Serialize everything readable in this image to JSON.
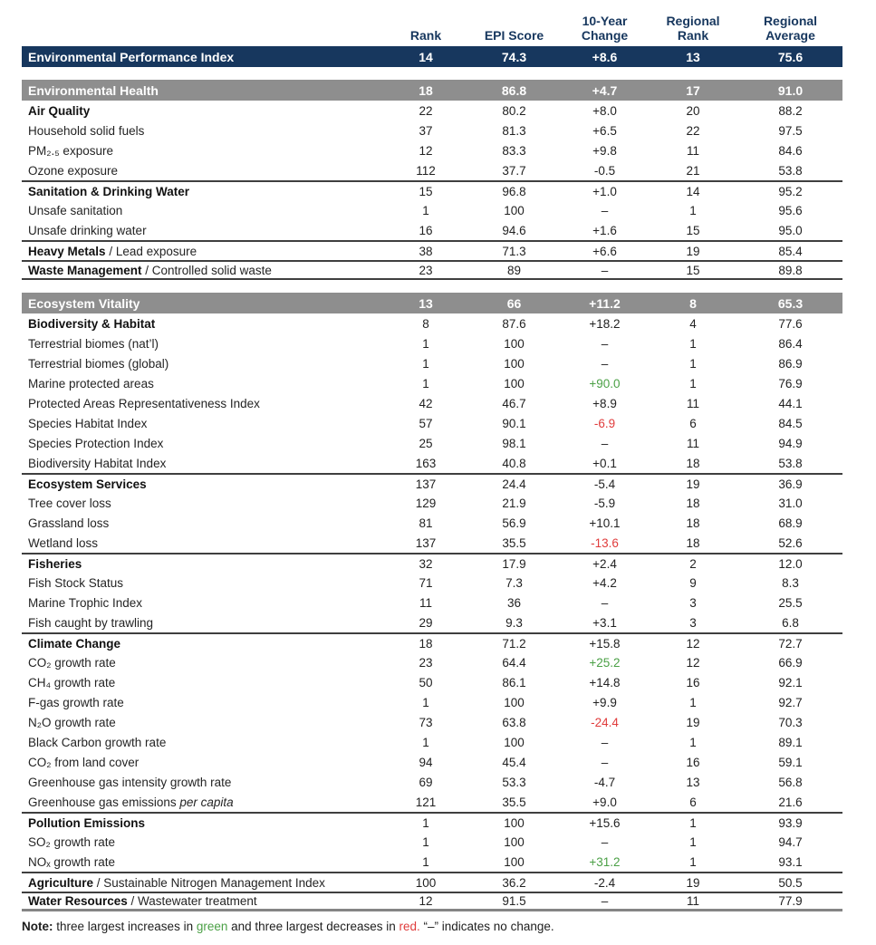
{
  "columns": [
    "Rank",
    "EPI Score",
    "10-Year\nChange",
    "Regional\nRank",
    "Regional\nAverage"
  ],
  "summary": {
    "label": "Environmental Performance Index",
    "values": [
      "14",
      "74.3",
      "+8.6",
      "13",
      "75.6"
    ]
  },
  "sections": [
    {
      "title": "Environmental Health",
      "values": [
        "18",
        "86.8",
        "+4.7",
        "17",
        "91.0"
      ],
      "rows": [
        {
          "label": "Air Quality",
          "bold": true,
          "values": [
            "22",
            "80.2",
            "+8.0",
            "20",
            "88.2"
          ]
        },
        {
          "label": "Household solid fuels",
          "values": [
            "37",
            "81.3",
            "+6.5",
            "22",
            "97.5"
          ]
        },
        {
          "label": "PM₂.₅ exposure",
          "values": [
            "12",
            "83.3",
            "+9.8",
            "11",
            "84.6"
          ]
        },
        {
          "label": "Ozone exposure",
          "values": [
            "112",
            "37.7",
            "-0.5",
            "21",
            "53.8"
          ]
        },
        {
          "label": "Sanitation & Drinking Water",
          "bold": true,
          "divider": true,
          "values": [
            "15",
            "96.8",
            "+1.0",
            "14",
            "95.2"
          ]
        },
        {
          "label": "Unsafe sanitation",
          "values": [
            "1",
            "100",
            "–",
            "1",
            "95.6"
          ]
        },
        {
          "label": "Unsafe drinking water",
          "values": [
            "16",
            "94.6",
            "+1.6",
            "15",
            "95.0"
          ]
        },
        {
          "label": "Heavy Metals",
          "label2": " / Lead exposure",
          "bold": true,
          "divider": true,
          "values": [
            "38",
            "71.3",
            "+6.6",
            "19",
            "85.4"
          ]
        },
        {
          "label": "Waste Management",
          "label2": " / Controlled solid waste",
          "bold": true,
          "divider": true,
          "end": true,
          "values": [
            "23",
            "89",
            "–",
            "15",
            "89.8"
          ]
        }
      ]
    },
    {
      "title": "Ecosystem Vitality",
      "values": [
        "13",
        "66",
        "+11.2",
        "8",
        "65.3"
      ],
      "rows": [
        {
          "label": "Biodiversity & Habitat",
          "bold": true,
          "values": [
            "8",
            "87.6",
            "+18.2",
            "4",
            "77.6"
          ]
        },
        {
          "label": "Terrestrial biomes (nat’l)",
          "values": [
            "1",
            "100",
            "–",
            "1",
            "86.4"
          ]
        },
        {
          "label": "Terrestrial biomes (global)",
          "values": [
            "1",
            "100",
            "–",
            "1",
            "86.9"
          ]
        },
        {
          "label": "Marine protected areas",
          "change": "green",
          "values": [
            "1",
            "100",
            "+90.0",
            "1",
            "76.9"
          ]
        },
        {
          "label": "Protected Areas Representativeness Index",
          "values": [
            "42",
            "46.7",
            "+8.9",
            "11",
            "44.1"
          ]
        },
        {
          "label": "Species Habitat Index",
          "change": "red",
          "values": [
            "57",
            "90.1",
            "-6.9",
            "6",
            "84.5"
          ]
        },
        {
          "label": "Species Protection Index",
          "values": [
            "25",
            "98.1",
            "–",
            "11",
            "94.9"
          ]
        },
        {
          "label": "Biodiversity Habitat Index",
          "values": [
            "163",
            "40.8",
            "+0.1",
            "18",
            "53.8"
          ]
        },
        {
          "label": "Ecosystem Services",
          "bold": true,
          "divider": true,
          "values": [
            "137",
            "24.4",
            "-5.4",
            "19",
            "36.9"
          ]
        },
        {
          "label": "Tree cover loss",
          "values": [
            "129",
            "21.9",
            "-5.9",
            "18",
            "31.0"
          ]
        },
        {
          "label": "Grassland loss",
          "values": [
            "81",
            "56.9",
            "+10.1",
            "18",
            "68.9"
          ]
        },
        {
          "label": "Wetland loss",
          "change": "red",
          "values": [
            "137",
            "35.5",
            "-13.6",
            "18",
            "52.6"
          ]
        },
        {
          "label": "Fisheries",
          "bold": true,
          "divider": true,
          "values": [
            "32",
            "17.9",
            "+2.4",
            "2",
            "12.0"
          ]
        },
        {
          "label": "Fish Stock Status",
          "values": [
            "71",
            "7.3",
            "+4.2",
            "9",
            "8.3"
          ]
        },
        {
          "label": "Marine Trophic Index",
          "values": [
            "11",
            "36",
            "–",
            "3",
            "25.5"
          ]
        },
        {
          "label": "Fish caught by trawling",
          "values": [
            "29",
            "9.3",
            "+3.1",
            "3",
            "6.8"
          ]
        },
        {
          "label": "Climate Change",
          "bold": true,
          "divider": true,
          "values": [
            "18",
            "71.2",
            "+15.8",
            "12",
            "72.7"
          ]
        },
        {
          "label": "CO₂ growth rate",
          "change": "green",
          "values": [
            "23",
            "64.4",
            "+25.2",
            "12",
            "66.9"
          ]
        },
        {
          "label": "CH₄ growth rate",
          "values": [
            "50",
            "86.1",
            "+14.8",
            "16",
            "92.1"
          ]
        },
        {
          "label": "F-gas growth rate",
          "values": [
            "1",
            "100",
            "+9.9",
            "1",
            "92.7"
          ]
        },
        {
          "label": "N₂O growth rate",
          "change": "red",
          "values": [
            "73",
            "63.8",
            "-24.4",
            "19",
            "70.3"
          ]
        },
        {
          "label": "Black Carbon growth rate",
          "values": [
            "1",
            "100",
            "–",
            "1",
            "89.1"
          ]
        },
        {
          "label": "CO₂ from land cover",
          "values": [
            "94",
            "45.4",
            "–",
            "16",
            "59.1"
          ]
        },
        {
          "label": "Greenhouse gas intensity growth rate",
          "values": [
            "69",
            "53.3",
            "-4.7",
            "13",
            "56.8"
          ]
        },
        {
          "label": "Greenhouse gas emissions",
          "label2": " per capita",
          "label2_italic": true,
          "values": [
            "121",
            "35.5",
            "+9.0",
            "6",
            "21.6"
          ]
        },
        {
          "label": "Pollution Emissions",
          "bold": true,
          "divider": true,
          "values": [
            "1",
            "100",
            "+15.6",
            "1",
            "93.9"
          ]
        },
        {
          "label": "SO₂ growth rate",
          "values": [
            "1",
            "100",
            "–",
            "1",
            "94.7"
          ]
        },
        {
          "label": "NOₓ growth rate",
          "change": "green",
          "values": [
            "1",
            "100",
            "+31.2",
            "1",
            "93.1"
          ]
        },
        {
          "label": "Agriculture",
          "label2": " / Sustainable Nitrogen Management Index",
          "bold": true,
          "divider": true,
          "values": [
            "100",
            "36.2",
            "-2.4",
            "19",
            "50.5"
          ]
        },
        {
          "label": "Water Resources",
          "label2": " / Wastewater treatment",
          "bold": true,
          "divider": true,
          "end": "final",
          "values": [
            "12",
            "91.5",
            "–",
            "11",
            "77.9"
          ]
        }
      ]
    }
  ],
  "note": {
    "prefix": "Note:",
    "part1": " three largest increases in ",
    "green_word": "green",
    "part2": " and three largest decreases in ",
    "red_word": "red.",
    "part3": " “–” indicates no change."
  },
  "colors": {
    "navy": "#17375e",
    "band_gray": "#8e8e8e",
    "green": "#4ba046",
    "red": "#e03c3c"
  }
}
